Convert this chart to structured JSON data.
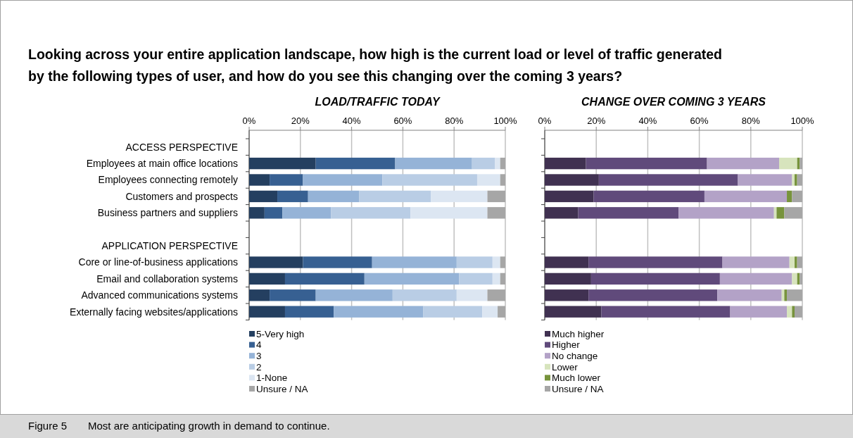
{
  "chart_data": [
    {
      "type": "bar",
      "title": "LOAD/TRAFFIC TODAY",
      "orientation": "horizontal",
      "stacked": true,
      "grid": "x",
      "legend": "bottom left",
      "annotations": [
        "Looking across your entire application landscape, how high is the current load or level of traffic generated by the following types of user, and how do you see this changing over the coming 3 years?",
        "Figure 5  Most are anticipating growth in demand to continue."
      ],
      "categories": [
        "ACCESS PERSPECTIVE",
        "Employees at main office locations",
        "Employees connecting remotely",
        "Customers and prospects",
        "Business partners and suppliers",
        null,
        "APPLICATION PERSPECTIVE",
        "Core or line-of-business applications",
        "Email and collaboration systems",
        "Advanced communications systems",
        "Externally facing websites/applications"
      ],
      "xlim": [
        0,
        100
      ],
      "xticks": [
        {
          "value": 0,
          "label": "0%"
        },
        {
          "value": 20,
          "label": "20%"
        },
        {
          "value": 40,
          "label": "40%"
        },
        {
          "value": 60,
          "label": "60%"
        },
        {
          "value": 80,
          "label": "80%"
        },
        {
          "value": 100,
          "label": "100%"
        }
      ],
      "series": [
        {
          "name": "5-Very high",
          "color": "#243f60",
          "values": [
            null,
            26,
            8,
            11,
            6,
            null,
            null,
            21,
            14,
            8,
            14
          ]
        },
        {
          "name": "4",
          "color": "#376092",
          "values": [
            null,
            31,
            13,
            12,
            7,
            null,
            null,
            27,
            31,
            18,
            19
          ]
        },
        {
          "name": "3",
          "color": "#95b3d7",
          "values": [
            null,
            30,
            31,
            20,
            19,
            null,
            null,
            33,
            37,
            30,
            35
          ]
        },
        {
          "name": "2",
          "color": "#b9cde5",
          "values": [
            null,
            9,
            37,
            28,
            31,
            null,
            null,
            14,
            13,
            25,
            23
          ]
        },
        {
          "name": "1-None",
          "color": "#dce6f2",
          "values": [
            null,
            2,
            9,
            22,
            30,
            null,
            null,
            3,
            3,
            12,
            6
          ]
        },
        {
          "name": "Unsure / NA",
          "color": "#a6a6a6",
          "values": [
            null,
            2,
            2,
            7,
            7,
            null,
            null,
            2,
            2,
            7,
            3
          ]
        }
      ]
    },
    {
      "type": "bar",
      "title": "CHANGE OVER COMING 3 YEARS",
      "orientation": "horizontal",
      "stacked": true,
      "grid": "x",
      "legend": "bottom left",
      "categories": [
        null,
        null,
        null,
        null,
        null,
        null,
        null,
        null,
        null,
        null,
        null
      ],
      "xlim": [
        0,
        100
      ],
      "xticks": [
        {
          "value": 0,
          "label": "0%"
        },
        {
          "value": 20,
          "label": "20%"
        },
        {
          "value": 40,
          "label": "40%"
        },
        {
          "value": 60,
          "label": "60%"
        },
        {
          "value": 80,
          "label": "80%"
        },
        {
          "value": 100,
          "label": "100%"
        }
      ],
      "series": [
        {
          "name": "Much higher",
          "color": "#403151",
          "values": [
            null,
            16,
            21,
            19,
            13,
            null,
            null,
            17,
            18,
            17,
            22
          ]
        },
        {
          "name": "Higher",
          "color": "#604a7b",
          "values": [
            null,
            47,
            54,
            43,
            39,
            null,
            null,
            52,
            50,
            50,
            50
          ]
        },
        {
          "name": "No change",
          "color": "#b3a2c7",
          "values": [
            null,
            28,
            21,
            32,
            37,
            null,
            null,
            26,
            28,
            25,
            22
          ]
        },
        {
          "name": "Lower",
          "color": "#d7e4bd",
          "values": [
            null,
            7,
            1,
            0,
            1,
            null,
            null,
            2,
            2,
            1,
            2
          ]
        },
        {
          "name": "Much lower",
          "color": "#77933c",
          "values": [
            null,
            1,
            1,
            2,
            3,
            null,
            null,
            1,
            1,
            1,
            1
          ]
        },
        {
          "name": "Unsure / NA",
          "color": "#a6a6a6",
          "values": [
            null,
            1,
            2,
            4,
            7,
            null,
            null,
            2,
            1,
            6,
            3
          ]
        }
      ]
    }
  ]
}
